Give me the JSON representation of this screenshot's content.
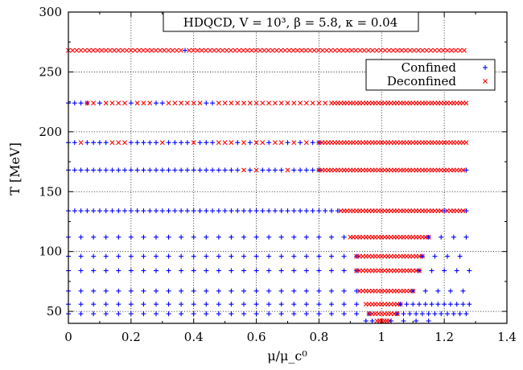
{
  "chart_data": {
    "type": "scatter",
    "title": "HDQCD, V = 10³, β = 5.8, κ = 0.04",
    "xlabel": "μ/μ_c⁰",
    "ylabel": "T [MeV]",
    "xlim": [
      0,
      1.4
    ],
    "ylim": [
      40,
      300
    ],
    "xticks": [
      "0",
      "0.2",
      "0.4",
      "0.6",
      "0.8",
      "1",
      "1.2",
      "1.4"
    ],
    "yticks": [
      "50",
      "100",
      "150",
      "200",
      "250",
      "300"
    ],
    "grid": true,
    "legend_position": "top-right",
    "legend": [
      "Confined",
      "Deconfined"
    ],
    "colors": {
      "confined": "#0000ff",
      "deconfined": "#ff0000"
    },
    "rows": [
      {
        "T": 268,
        "segments": [
          {
            "from": 0.0,
            "to": 1.27,
            "step": 0.0133,
            "phase": "D"
          }
        ],
        "confined_at": [
          0.375
        ]
      },
      {
        "T": 224,
        "segments": [
          {
            "from": 0.0,
            "to": 0.06,
            "step": 0.02,
            "phase": "C"
          },
          {
            "from": 0.06,
            "to": 0.85,
            "step": 0.02,
            "phase": "D"
          },
          {
            "from": 0.85,
            "to": 1.27,
            "step": 0.01,
            "phase": "D"
          }
        ],
        "confined_at": [
          0.1,
          0.2,
          0.28,
          0.3,
          0.44,
          0.45,
          0.47
        ]
      },
      {
        "T": 191,
        "segments": [
          {
            "from": 0.0,
            "to": 0.8,
            "step": 0.02,
            "phase": "C"
          },
          {
            "from": 0.8,
            "to": 1.27,
            "step": 0.01,
            "phase": "D"
          }
        ],
        "deconfined_at": [
          0.04,
          0.14,
          0.16,
          0.18,
          0.3,
          0.4,
          0.48,
          0.5,
          0.52,
          0.56,
          0.6,
          0.62,
          0.66,
          0.68,
          0.72,
          0.76
        ]
      },
      {
        "T": 168,
        "segments": [
          {
            "from": 0.0,
            "to": 0.8,
            "step": 0.02,
            "phase": "C"
          },
          {
            "from": 0.8,
            "to": 1.27,
            "step": 0.01,
            "phase": "D"
          }
        ],
        "deconfined_at": [
          0.56,
          0.6,
          0.7
        ],
        "confined_at": [
          1.27
        ]
      },
      {
        "T": 134,
        "segments": [
          {
            "from": 0.0,
            "to": 0.87,
            "step": 0.02,
            "phase": "C"
          },
          {
            "from": 0.87,
            "to": 1.27,
            "step": 0.01,
            "phase": "D"
          }
        ],
        "confined_at": [
          1.2,
          1.27
        ]
      },
      {
        "T": 112,
        "segments": [
          {
            "from": 0.0,
            "to": 0.9,
            "step": 0.04,
            "phase": "C"
          },
          {
            "from": 0.9,
            "to": 1.15,
            "step": 0.01,
            "phase": "D"
          },
          {
            "from": 1.15,
            "to": 1.28,
            "step": 0.04,
            "phase": "C"
          }
        ]
      },
      {
        "T": 96,
        "segments": [
          {
            "from": 0.0,
            "to": 0.92,
            "step": 0.04,
            "phase": "C"
          },
          {
            "from": 0.92,
            "to": 1.13,
            "step": 0.01,
            "phase": "D"
          },
          {
            "from": 1.13,
            "to": 1.28,
            "step": 0.04,
            "phase": "C"
          }
        ]
      },
      {
        "T": 84,
        "segments": [
          {
            "from": 0.0,
            "to": 0.92,
            "step": 0.04,
            "phase": "C"
          },
          {
            "from": 0.92,
            "to": 1.12,
            "step": 0.01,
            "phase": "D"
          },
          {
            "from": 1.12,
            "to": 1.28,
            "step": 0.04,
            "phase": "C"
          }
        ]
      },
      {
        "T": 67,
        "segments": [
          {
            "from": 0.0,
            "to": 0.93,
            "step": 0.04,
            "phase": "C"
          },
          {
            "from": 0.93,
            "to": 1.1,
            "step": 0.01,
            "phase": "D"
          },
          {
            "from": 1.1,
            "to": 1.28,
            "step": 0.04,
            "phase": "C"
          }
        ]
      },
      {
        "T": 56,
        "segments": [
          {
            "from": 0.0,
            "to": 0.95,
            "step": 0.04,
            "phase": "C"
          },
          {
            "from": 0.95,
            "to": 1.06,
            "step": 0.01,
            "phase": "D"
          },
          {
            "from": 1.06,
            "to": 1.28,
            "step": 0.02,
            "phase": "C"
          }
        ]
      },
      {
        "T": 48,
        "segments": [
          {
            "from": 0.0,
            "to": 0.96,
            "step": 0.04,
            "phase": "C"
          },
          {
            "from": 0.96,
            "to": 1.05,
            "step": 0.01,
            "phase": "D"
          },
          {
            "from": 1.05,
            "to": 1.28,
            "step": 0.02,
            "phase": "C"
          }
        ]
      },
      {
        "T": 42,
        "segments": [
          {
            "from": 0.95,
            "to": 0.985,
            "step": 0.02,
            "phase": "C"
          },
          {
            "from": 0.985,
            "to": 1.03,
            "step": 0.008,
            "phase": "D"
          },
          {
            "from": 1.03,
            "to": 1.16,
            "step": 0.04,
            "phase": "C"
          }
        ]
      }
    ]
  }
}
